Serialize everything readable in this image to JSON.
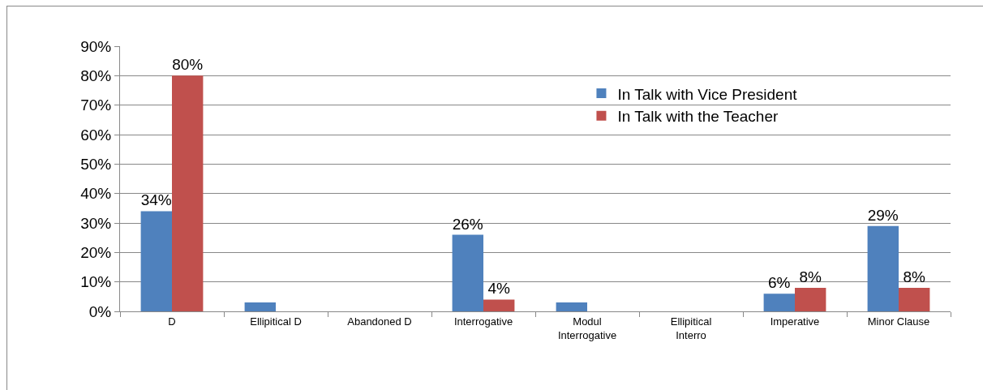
{
  "chart_data": {
    "type": "bar",
    "categories": [
      "D",
      "Ellipitical D",
      "Abandoned D",
      "Interrogative",
      "Modul Interrogative",
      "Ellipitical Interro",
      "Imperative",
      "Minor Clause"
    ],
    "series": [
      {
        "name": "In Talk with Vice President",
        "color": "#4f81bd",
        "values": [
          34,
          3,
          0,
          26,
          3,
          0,
          6,
          29
        ],
        "value_labels": [
          "34%",
          null,
          null,
          "26%",
          null,
          null,
          "6%",
          "29%"
        ]
      },
      {
        "name": "In Talk with the Teacher",
        "color": "#c0504d",
        "values": [
          80,
          0,
          0,
          4,
          0,
          0,
          8,
          8
        ],
        "value_labels": [
          "80%",
          null,
          null,
          "4%",
          null,
          null,
          "8%",
          "8%"
        ]
      }
    ],
    "ylim": [
      0,
      90
    ],
    "yticks": [
      {
        "value": 0,
        "label": "0%"
      },
      {
        "value": 10,
        "label": "10%"
      },
      {
        "value": 20,
        "label": "20%"
      },
      {
        "value": 30,
        "label": "30%"
      },
      {
        "value": 40,
        "label": "40%"
      },
      {
        "value": 50,
        "label": "50%"
      },
      {
        "value": 60,
        "label": "60%"
      },
      {
        "value": 70,
        "label": "70%"
      },
      {
        "value": 80,
        "label": "80%"
      },
      {
        "value": 90,
        "label": "90%"
      }
    ],
    "grid": "y",
    "legend": "top right"
  }
}
